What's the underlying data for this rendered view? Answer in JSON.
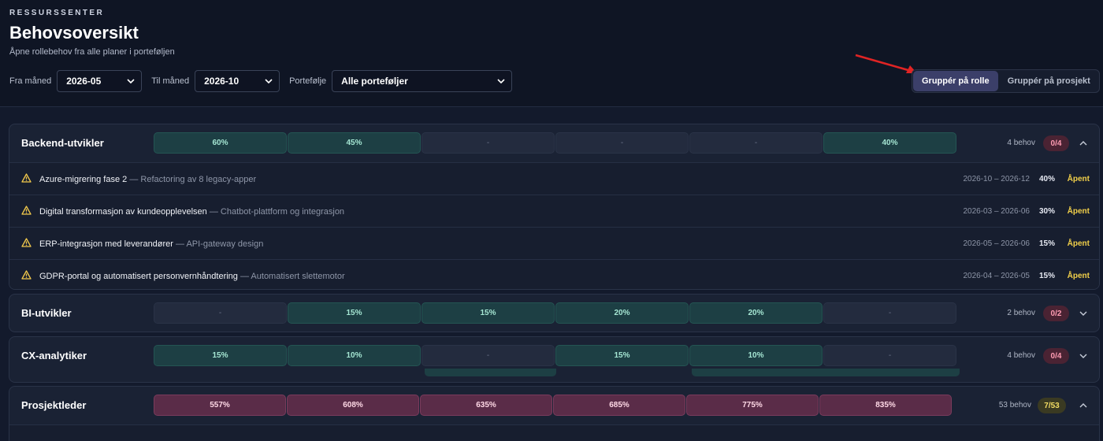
{
  "header": {
    "eyebrow": "RESSURSSENTER",
    "title": "Behovsoversikt",
    "subtitle": "Åpne rollebehov fra alle planer i porteføljen"
  },
  "filters": {
    "from_label": "Fra måned",
    "from_value": "2026-05",
    "to_label": "Til måned",
    "to_value": "2026-10",
    "portfolio_label": "Portefølje",
    "portfolio_value": "Alle porteføljer"
  },
  "grouping": {
    "by_role": "Gruppér på rolle",
    "by_project": "Gruppér på prosjekt",
    "active": "by_role"
  },
  "colors": {
    "accent_arrow": "#e02424",
    "warning": "#f2c94c"
  },
  "groups": [
    {
      "role": "Backend-utvikler",
      "months": [
        {
          "label": "60%",
          "tone": "green"
        },
        {
          "label": "45%",
          "tone": "green"
        },
        {
          "label": "-",
          "tone": "empty"
        },
        {
          "label": "-",
          "tone": "empty"
        },
        {
          "label": "-",
          "tone": "empty"
        },
        {
          "label": "40%",
          "tone": "green"
        }
      ],
      "behov": "4 behov",
      "badge": "0/4",
      "badge_tone": "red",
      "expanded": true,
      "projects": [
        {
          "title": "Azure-migrering fase 2",
          "sub": " — Refactoring av 8 legacy-apper",
          "dates": "2026-10 – 2026-12",
          "pct": "40%",
          "status": "Åpent"
        },
        {
          "title": "Digital transformasjon av kundeopplevelsen",
          "sub": " — Chatbot-plattform og integrasjon",
          "dates": "2026-03 – 2026-06",
          "pct": "30%",
          "status": "Åpent"
        },
        {
          "title": "ERP-integrasjon med leverandører",
          "sub": " — API-gateway design",
          "dates": "2026-05 – 2026-06",
          "pct": "15%",
          "status": "Åpent"
        },
        {
          "title": "GDPR-portal og automatisert personvernhåndtering",
          "sub": " — Automatisert slettemotor",
          "dates": "2026-04 – 2026-05",
          "pct": "15%",
          "status": "Åpent"
        }
      ]
    },
    {
      "role": "BI-utvikler",
      "months": [
        {
          "label": "-",
          "tone": "empty"
        },
        {
          "label": "15%",
          "tone": "green"
        },
        {
          "label": "15%",
          "tone": "green"
        },
        {
          "label": "20%",
          "tone": "green"
        },
        {
          "label": "20%",
          "tone": "green"
        },
        {
          "label": "-",
          "tone": "empty"
        }
      ],
      "behov": "2 behov",
      "badge": "0/2",
      "badge_tone": "red",
      "expanded": false
    },
    {
      "role": "CX-analytiker",
      "months": [
        {
          "label": "15%",
          "tone": "green"
        },
        {
          "label": "10%",
          "tone": "green"
        },
        {
          "label": "-",
          "tone": "empty"
        },
        {
          "label": "15%",
          "tone": "green"
        },
        {
          "label": "10%",
          "tone": "green"
        },
        {
          "label": "-",
          "tone": "empty"
        }
      ],
      "behov": "4 behov",
      "badge": "0/4",
      "badge_tone": "red",
      "expanded": false
    },
    {
      "role": "Prosjektleder",
      "months": [
        {
          "label": "557%",
          "tone": "red"
        },
        {
          "label": "608%",
          "tone": "red"
        },
        {
          "label": "635%",
          "tone": "red"
        },
        {
          "label": "685%",
          "tone": "red"
        },
        {
          "label": "775%",
          "tone": "red"
        },
        {
          "label": "835%",
          "tone": "red"
        }
      ],
      "behov": "53 behov",
      "badge": "7/53",
      "badge_tone": "yellow",
      "expanded": true
    }
  ]
}
